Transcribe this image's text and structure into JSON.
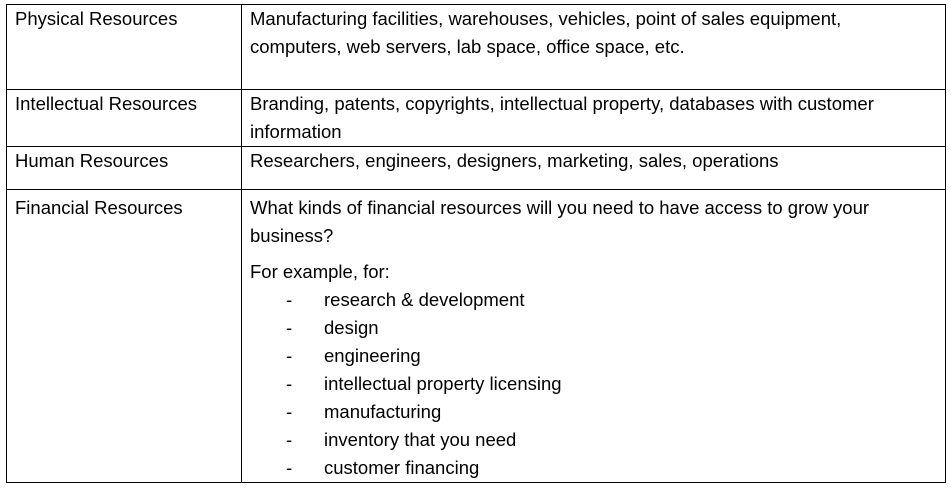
{
  "rows": [
    {
      "label": "Physical Resources",
      "text": "Manufacturing facilities, warehouses, vehicles, point of sales equipment, computers, web servers, lab space, office space, etc."
    },
    {
      "label": "Intellectual Resources",
      "text": "Branding, patents, copyrights, intellectual property, databases with customer information"
    },
    {
      "label": "Human Resources",
      "text": "Researchers, engineers, designers, marketing, sales, operations"
    },
    {
      "label": "Financial Resources",
      "question": "What kinds of financial resources will you need to have access to grow your business?",
      "example_intro": "For example, for:",
      "bullet_marker": "-",
      "items": [
        "research & development",
        "design",
        "engineering",
        "intellectual property licensing",
        "manufacturing",
        "inventory that you need",
        "customer financing"
      ]
    }
  ]
}
